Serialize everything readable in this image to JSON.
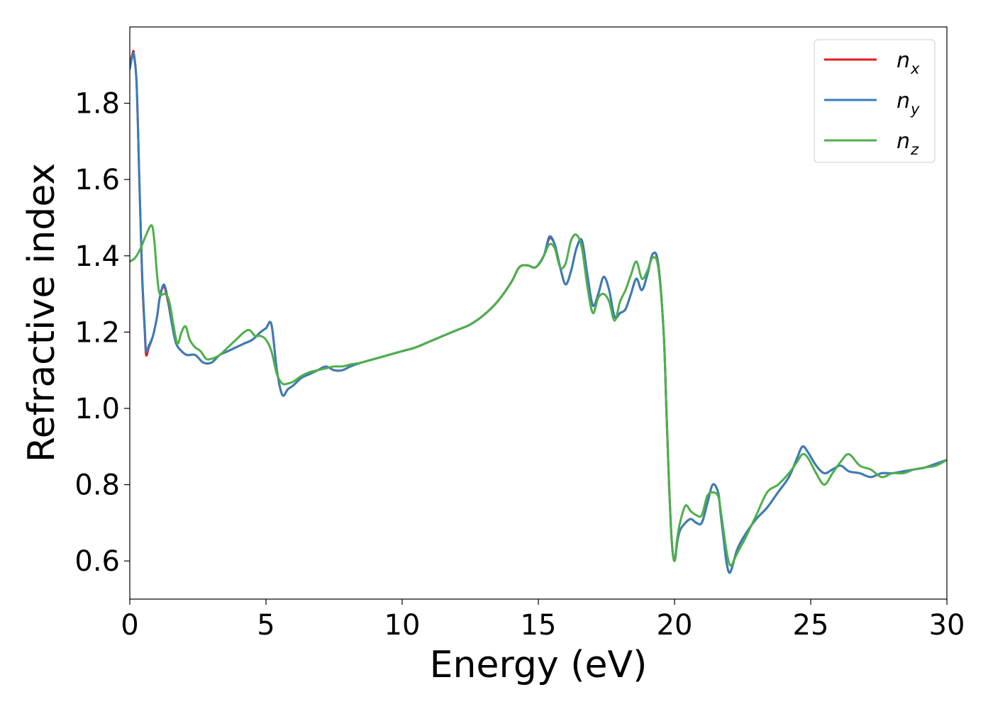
{
  "chart_data": {
    "type": "line",
    "title": "",
    "xlabel": "Energy (eV)",
    "ylabel": "Refractive index",
    "xlim": [
      0,
      30
    ],
    "ylim": [
      0.5,
      2.0
    ],
    "xticks": [
      0,
      5,
      10,
      15,
      20,
      25,
      30
    ],
    "xtick_labels": [
      "0",
      "5",
      "10",
      "15",
      "20",
      "25",
      "30"
    ],
    "yticks": [
      0.6,
      0.8,
      1.0,
      1.2,
      1.4,
      1.6,
      1.8
    ],
    "ytick_labels": [
      "0.6",
      "0.8",
      "1.0",
      "1.2",
      "1.4",
      "1.6",
      "1.8"
    ],
    "grid": false,
    "legend_position": "top-right",
    "series": [
      {
        "name": "n_x",
        "legend_base": "n",
        "legend_sub": "x",
        "color": "#e41a1c",
        "x": [
          0,
          0.1,
          0.15,
          0.25,
          0.35,
          0.45,
          0.55,
          0.6,
          0.7,
          0.85,
          1.0,
          1.1,
          1.25,
          1.4,
          1.55,
          1.7,
          1.9,
          2.1,
          2.4,
          2.7,
          3.0,
          3.3,
          3.6,
          3.9,
          4.2,
          4.5,
          4.8,
          5.0,
          5.2,
          5.4,
          5.6,
          5.8,
          6.0,
          6.3,
          6.6,
          6.9,
          7.2,
          7.5,
          7.8,
          8.1,
          8.5,
          9.0,
          9.5,
          10.0,
          10.5,
          11.0,
          11.5,
          12.0,
          12.5,
          13.0,
          13.5,
          14.0,
          14.3,
          14.6,
          14.9,
          15.2,
          15.4,
          15.6,
          15.8,
          16.0,
          16.2,
          16.4,
          16.6,
          16.8,
          17.0,
          17.2,
          17.4,
          17.6,
          17.8,
          18.0,
          18.2,
          18.4,
          18.6,
          18.8,
          19.0,
          19.2,
          19.4,
          19.6,
          19.7,
          19.8,
          19.9,
          20.0,
          20.1,
          20.2,
          20.4,
          20.6,
          20.8,
          21.0,
          21.2,
          21.4,
          21.6,
          21.7,
          21.8,
          21.9,
          22.0,
          22.1,
          22.3,
          22.6,
          23.0,
          23.4,
          23.8,
          24.2,
          24.5,
          24.7,
          24.9,
          25.2,
          25.5,
          25.8,
          26.1,
          26.4,
          26.8,
          27.2,
          27.6,
          28.0,
          28.4,
          28.8,
          29.2,
          29.6,
          30.0
        ],
        "y": [
          1.9,
          1.93,
          1.93,
          1.85,
          1.6,
          1.35,
          1.2,
          1.14,
          1.16,
          1.19,
          1.24,
          1.29,
          1.32,
          1.28,
          1.22,
          1.17,
          1.15,
          1.14,
          1.14,
          1.12,
          1.12,
          1.14,
          1.15,
          1.16,
          1.17,
          1.18,
          1.2,
          1.21,
          1.22,
          1.1,
          1.035,
          1.05,
          1.06,
          1.08,
          1.09,
          1.1,
          1.11,
          1.1,
          1.1,
          1.11,
          1.12,
          1.13,
          1.14,
          1.15,
          1.16,
          1.175,
          1.19,
          1.205,
          1.22,
          1.245,
          1.28,
          1.33,
          1.37,
          1.375,
          1.37,
          1.4,
          1.445,
          1.43,
          1.37,
          1.325,
          1.36,
          1.42,
          1.44,
          1.35,
          1.27,
          1.3,
          1.345,
          1.31,
          1.24,
          1.25,
          1.26,
          1.3,
          1.34,
          1.31,
          1.35,
          1.405,
          1.38,
          1.2,
          1.0,
          0.8,
          0.65,
          0.6,
          0.65,
          0.68,
          0.7,
          0.71,
          0.7,
          0.7,
          0.75,
          0.8,
          0.78,
          0.72,
          0.66,
          0.6,
          0.57,
          0.58,
          0.63,
          0.67,
          0.71,
          0.74,
          0.78,
          0.82,
          0.87,
          0.9,
          0.885,
          0.85,
          0.83,
          0.84,
          0.85,
          0.835,
          0.83,
          0.82,
          0.83,
          0.83,
          0.835,
          0.84,
          0.845,
          0.855,
          0.865
        ]
      },
      {
        "name": "n_y",
        "legend_base": "n",
        "legend_sub": "y",
        "color": "#377eb8",
        "x": [
          0,
          0.1,
          0.15,
          0.25,
          0.35,
          0.45,
          0.55,
          0.6,
          0.7,
          0.85,
          1.0,
          1.1,
          1.25,
          1.4,
          1.55,
          1.7,
          1.9,
          2.1,
          2.4,
          2.7,
          3.0,
          3.3,
          3.6,
          3.9,
          4.2,
          4.5,
          4.8,
          5.0,
          5.2,
          5.4,
          5.6,
          5.8,
          6.0,
          6.3,
          6.6,
          6.9,
          7.2,
          7.5,
          7.8,
          8.1,
          8.5,
          9.0,
          9.5,
          10.0,
          10.5,
          11.0,
          11.5,
          12.0,
          12.5,
          13.0,
          13.5,
          14.0,
          14.3,
          14.6,
          14.9,
          15.2,
          15.4,
          15.6,
          15.8,
          16.0,
          16.2,
          16.4,
          16.6,
          16.8,
          17.0,
          17.2,
          17.4,
          17.6,
          17.8,
          18.0,
          18.2,
          18.4,
          18.6,
          18.8,
          19.0,
          19.2,
          19.4,
          19.6,
          19.7,
          19.8,
          19.9,
          20.0,
          20.1,
          20.2,
          20.4,
          20.6,
          20.8,
          21.0,
          21.2,
          21.4,
          21.6,
          21.7,
          21.8,
          21.9,
          22.0,
          22.1,
          22.3,
          22.6,
          23.0,
          23.4,
          23.8,
          24.2,
          24.5,
          24.7,
          24.9,
          25.2,
          25.5,
          25.8,
          26.1,
          26.4,
          26.8,
          27.2,
          27.6,
          28.0,
          28.4,
          28.8,
          29.2,
          29.6,
          30.0
        ],
        "y": [
          1.89,
          1.925,
          1.925,
          1.85,
          1.6,
          1.36,
          1.21,
          1.15,
          1.165,
          1.19,
          1.24,
          1.29,
          1.325,
          1.285,
          1.22,
          1.17,
          1.15,
          1.14,
          1.14,
          1.12,
          1.12,
          1.14,
          1.15,
          1.16,
          1.17,
          1.18,
          1.2,
          1.21,
          1.22,
          1.1,
          1.035,
          1.05,
          1.06,
          1.08,
          1.09,
          1.1,
          1.11,
          1.1,
          1.1,
          1.11,
          1.12,
          1.13,
          1.14,
          1.15,
          1.16,
          1.175,
          1.19,
          1.205,
          1.22,
          1.245,
          1.28,
          1.33,
          1.37,
          1.375,
          1.37,
          1.4,
          1.45,
          1.43,
          1.37,
          1.325,
          1.36,
          1.42,
          1.44,
          1.35,
          1.27,
          1.3,
          1.345,
          1.31,
          1.24,
          1.25,
          1.26,
          1.3,
          1.34,
          1.31,
          1.35,
          1.405,
          1.38,
          1.2,
          1.0,
          0.8,
          0.65,
          0.6,
          0.65,
          0.68,
          0.7,
          0.71,
          0.7,
          0.7,
          0.75,
          0.8,
          0.78,
          0.72,
          0.66,
          0.6,
          0.57,
          0.58,
          0.63,
          0.67,
          0.71,
          0.74,
          0.78,
          0.82,
          0.87,
          0.9,
          0.885,
          0.85,
          0.83,
          0.84,
          0.85,
          0.835,
          0.83,
          0.82,
          0.83,
          0.83,
          0.835,
          0.84,
          0.845,
          0.855,
          0.865
        ]
      },
      {
        "name": "n_z",
        "legend_base": "n",
        "legend_sub": "z",
        "color": "#4daf4a",
        "x": [
          0,
          0.2,
          0.4,
          0.6,
          0.8,
          0.9,
          1.0,
          1.1,
          1.3,
          1.45,
          1.6,
          1.75,
          1.9,
          2.05,
          2.2,
          2.4,
          2.6,
          2.8,
          3.0,
          3.3,
          3.6,
          3.9,
          4.2,
          4.4,
          4.6,
          4.8,
          5.0,
          5.2,
          5.4,
          5.6,
          5.8,
          6.0,
          6.3,
          6.6,
          6.9,
          7.2,
          7.5,
          7.8,
          8.1,
          8.5,
          9.0,
          9.5,
          10.0,
          10.5,
          11.0,
          11.5,
          12.0,
          12.5,
          13.0,
          13.5,
          14.0,
          14.3,
          14.6,
          14.9,
          15.2,
          15.4,
          15.6,
          15.8,
          16.0,
          16.2,
          16.4,
          16.6,
          16.8,
          17.0,
          17.2,
          17.4,
          17.6,
          17.8,
          18.0,
          18.2,
          18.4,
          18.6,
          18.8,
          19.0,
          19.2,
          19.4,
          19.6,
          19.7,
          19.8,
          19.9,
          20.0,
          20.1,
          20.2,
          20.4,
          20.6,
          20.8,
          21.0,
          21.2,
          21.4,
          21.6,
          21.7,
          21.8,
          21.9,
          22.0,
          22.1,
          22.3,
          22.6,
          23.0,
          23.4,
          23.8,
          24.2,
          24.5,
          24.7,
          24.9,
          25.2,
          25.5,
          25.8,
          26.1,
          26.4,
          26.8,
          27.2,
          27.6,
          28.0,
          28.4,
          28.8,
          29.2,
          29.6,
          30.0
        ],
        "y": [
          1.385,
          1.395,
          1.42,
          1.455,
          1.48,
          1.44,
          1.35,
          1.3,
          1.3,
          1.28,
          1.22,
          1.17,
          1.2,
          1.215,
          1.18,
          1.16,
          1.15,
          1.13,
          1.13,
          1.14,
          1.16,
          1.18,
          1.2,
          1.205,
          1.19,
          1.19,
          1.18,
          1.15,
          1.09,
          1.065,
          1.065,
          1.07,
          1.085,
          1.095,
          1.1,
          1.105,
          1.11,
          1.11,
          1.115,
          1.12,
          1.13,
          1.14,
          1.15,
          1.16,
          1.175,
          1.19,
          1.205,
          1.22,
          1.245,
          1.28,
          1.33,
          1.37,
          1.375,
          1.37,
          1.4,
          1.43,
          1.42,
          1.37,
          1.38,
          1.44,
          1.455,
          1.42,
          1.32,
          1.25,
          1.29,
          1.3,
          1.28,
          1.23,
          1.28,
          1.31,
          1.35,
          1.385,
          1.34,
          1.36,
          1.395,
          1.37,
          1.2,
          1.0,
          0.8,
          0.65,
          0.6,
          0.66,
          0.7,
          0.745,
          0.73,
          0.72,
          0.72,
          0.77,
          0.78,
          0.77,
          0.73,
          0.68,
          0.63,
          0.595,
          0.59,
          0.62,
          0.66,
          0.72,
          0.78,
          0.8,
          0.83,
          0.86,
          0.88,
          0.87,
          0.83,
          0.8,
          0.83,
          0.86,
          0.88,
          0.85,
          0.84,
          0.82,
          0.83,
          0.83,
          0.84,
          0.845,
          0.85,
          0.865
        ]
      }
    ]
  }
}
